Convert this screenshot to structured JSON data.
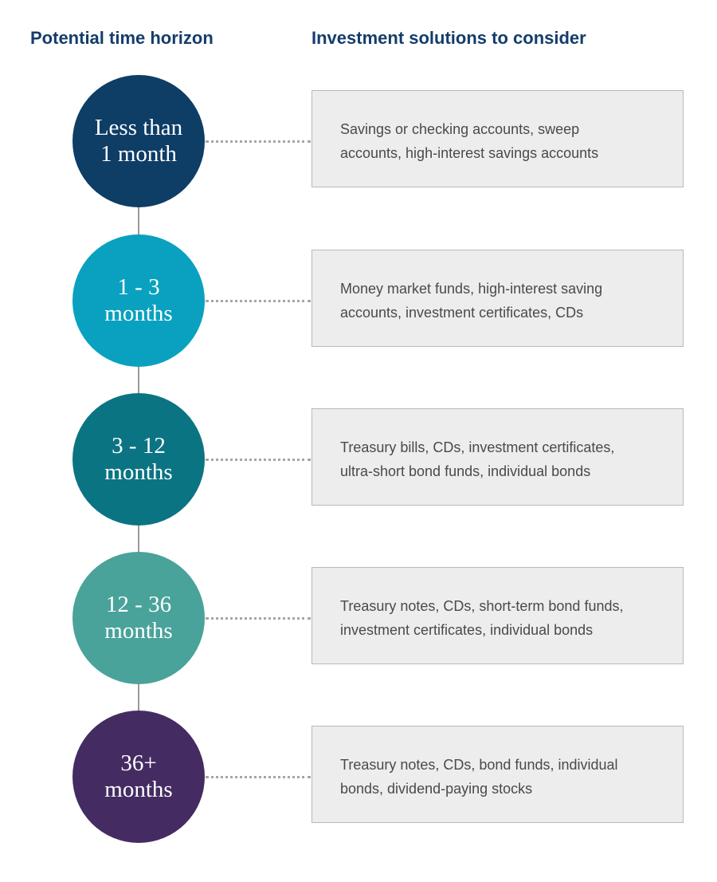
{
  "header": {
    "left_title": "Potential time horizon",
    "right_title": "Investment solutions to consider"
  },
  "colors": {
    "header_text": "#153d6b",
    "circle_1": "#0e3d66",
    "circle_2": "#0aa1c0",
    "circle_3": "#0b7483",
    "circle_4": "#49a39a",
    "circle_5": "#442c62",
    "box_fill": "#ededee",
    "box_text": "#4a4a4a",
    "connector": "#a6a6a6"
  },
  "rows": [
    {
      "horizon_line1": "Less than",
      "horizon_line2": "1 month",
      "solutions_line1": "Savings or checking accounts, sweep",
      "solutions_line2": "accounts, high-interest savings accounts"
    },
    {
      "horizon_line1": "1 - 3",
      "horizon_line2": "months",
      "solutions_line1": "Money market funds, high-interest saving",
      "solutions_line2": "accounts, investment certificates, CDs"
    },
    {
      "horizon_line1": "3 - 12",
      "horizon_line2": "months",
      "solutions_line1": "Treasury bills, CDs, investment certificates,",
      "solutions_line2": "ultra-short bond funds, individual bonds"
    },
    {
      "horizon_line1": "12 - 36",
      "horizon_line2": "months",
      "solutions_line1": "Treasury notes, CDs, short-term bond funds,",
      "solutions_line2": "investment certificates, individual bonds"
    },
    {
      "horizon_line1": "36+",
      "horizon_line2": "months",
      "solutions_line1": "Treasury notes, CDs, bond funds, individual",
      "solutions_line2": "bonds, dividend-paying stocks"
    }
  ]
}
